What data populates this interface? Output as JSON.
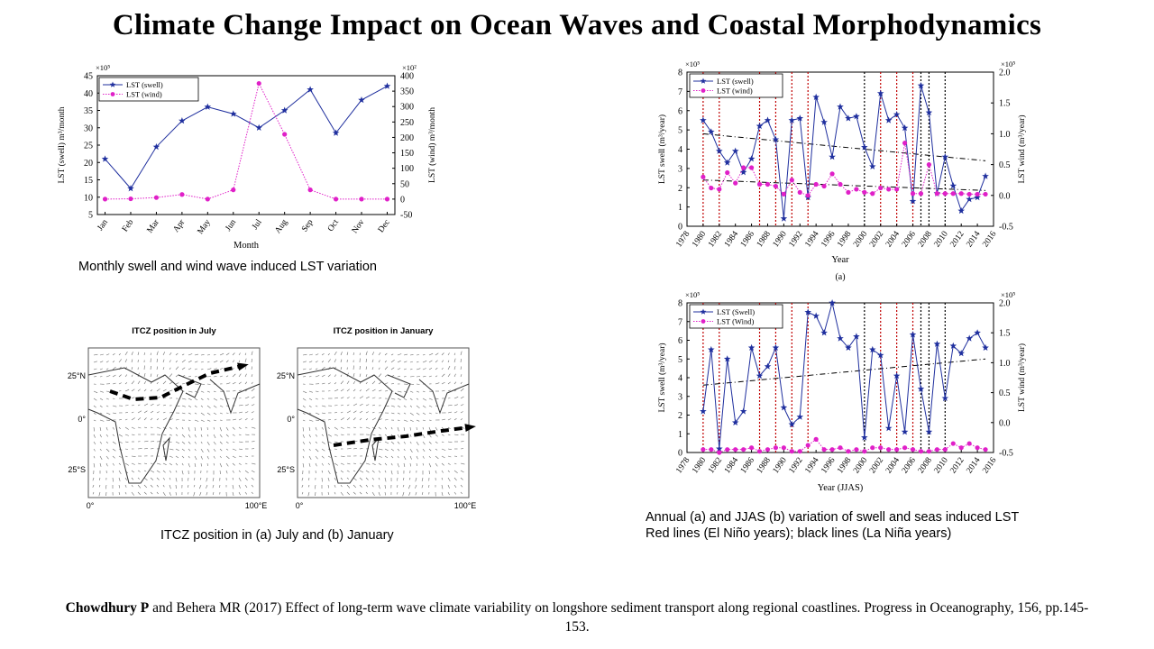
{
  "slide": {
    "title": "Climate Change Impact on Ocean Waves and Coastal Morphodynamics",
    "caption_monthly": "Monthly swell and wind wave induced LST variation",
    "caption_itcz": "ITCZ position in (a) July and (b) January",
    "caption_annual_line1": "Annual (a) and JJAS (b) variation of swell and seas induced LST",
    "caption_annual_line2": "Red lines (El Niño years); black lines (La Niña years)",
    "citation_author": "Chowdhury P",
    "citation_rest": " and Behera MR (2017) Effect of long-term wave climate variability on longshore sediment transport along regional coastlines. Progress in Oceanography, 156, pp.145-153."
  },
  "maps": {
    "july_title": "ITCZ position in July",
    "january_title": "ITCZ position in January",
    "lat_labels": [
      "25°N",
      "0°",
      "25°S"
    ],
    "lon_labels": [
      "0°",
      "100°E"
    ]
  },
  "chart_data": [
    {
      "type": "line",
      "xlabel": "Month",
      "ylabel": "LST (swell) m³/month",
      "y2label": "LST (wind) m³/month",
      "yscale_note": "×10⁵",
      "y2scale_note": "×10²",
      "ylim": [
        5,
        45
      ],
      "y2lim": [
        -50,
        400
      ],
      "categories": [
        "Jan",
        "Feb",
        "Mar",
        "Apr",
        "May",
        "Jun",
        "Jul",
        "Aug",
        "Sep",
        "Oct",
        "Nov",
        "Dec"
      ],
      "legend_position": "top-left",
      "series": [
        {
          "name": "LST (swell)",
          "axis": "left",
          "color": "#1f2f9e",
          "style": "solid-star",
          "values": [
            21,
            12.5,
            24.5,
            32,
            36,
            34,
            30,
            35,
            41,
            28.5,
            38,
            42
          ]
        },
        {
          "name": "LST (wind)",
          "axis": "right",
          "color": "#e020c8",
          "style": "dotted-dot",
          "values": [
            0,
            1,
            5,
            15,
            0,
            30,
            375,
            210,
            30,
            0,
            0,
            0
          ]
        }
      ]
    },
    {
      "type": "line",
      "panel_label": "(a)",
      "xlabel": "Year",
      "ylabel": "LST swell (m³/year)",
      "y2label": "LST wind (m³/year)",
      "yscale_note": "×10⁵",
      "y2scale_note": "×10⁵",
      "ylim": [
        0,
        8
      ],
      "y2lim": [
        -0.5,
        2
      ],
      "xlim": [
        1978,
        2016
      ],
      "x_ticks": [
        1978,
        1980,
        1982,
        1984,
        1986,
        1988,
        1990,
        1992,
        1994,
        1996,
        1998,
        2000,
        2002,
        2004,
        2006,
        2008,
        2010,
        2012,
        2014,
        2016
      ],
      "legend_position": "top-left",
      "el_nino_years": [
        1980,
        1982,
        1987,
        1989,
        1991,
        1993,
        2002,
        2004,
        2006
      ],
      "la_nina_years": [
        2000,
        2007,
        2008,
        2010
      ],
      "x": [
        1980,
        1981,
        1982,
        1983,
        1984,
        1985,
        1986,
        1987,
        1988,
        1989,
        1990,
        1991,
        1992,
        1993,
        1994,
        1995,
        1996,
        1997,
        1998,
        1999,
        2000,
        2001,
        2002,
        2003,
        2004,
        2005,
        2006,
        2007,
        2008,
        2009,
        2010,
        2011,
        2012,
        2013,
        2014,
        2015
      ],
      "series": [
        {
          "name": "LST (swell)",
          "axis": "left",
          "color": "#1f2f9e",
          "style": "solid-star",
          "values": [
            5.5,
            4.9,
            3.9,
            3.3,
            3.9,
            2.8,
            3.5,
            5.2,
            5.5,
            4.5,
            0.4,
            5.5,
            5.6,
            1.5,
            6.7,
            5.4,
            3.6,
            6.2,
            5.6,
            5.7,
            4.1,
            3.1,
            6.9,
            5.5,
            5.8,
            5.1,
            1.3,
            7.3,
            5.9,
            1.7,
            3.6,
            2.1,
            0.8,
            1.4,
            1.5,
            2.6
          ]
        },
        {
          "name": "LST (wind)",
          "axis": "right",
          "color": "#e020c8",
          "style": "dotted-dot",
          "values": [
            0.3,
            0.12,
            0.1,
            0.37,
            0.2,
            0.45,
            0.45,
            0.18,
            0.18,
            0.15,
            0.02,
            0.25,
            0.05,
            0.0,
            0.18,
            0.15,
            0.35,
            0.18,
            0.05,
            0.1,
            0.05,
            0.03,
            0.12,
            0.1,
            0.1,
            0.85,
            0.03,
            0.03,
            0.5,
            0.03,
            0.03,
            0.03,
            0.03,
            0.02,
            0.02,
            0.02
          ]
        }
      ],
      "trend_lines": [
        {
          "axis": "left",
          "from": [
            1980,
            4.8
          ],
          "to": [
            2015,
            3.4
          ]
        },
        {
          "axis": "right",
          "from": [
            1980,
            0.25
          ],
          "to": [
            2015,
            0.08
          ]
        }
      ]
    },
    {
      "type": "line",
      "xlabel": "Year (JJAS)",
      "ylabel": "LST swell (m³/year)",
      "y2label": "LST wind (m³/year)",
      "yscale_note": "×10⁵",
      "y2scale_note": "×10⁵",
      "ylim": [
        0,
        8
      ],
      "y2lim": [
        -0.5,
        2
      ],
      "xlim": [
        1978,
        2016
      ],
      "x_ticks": [
        1978,
        1980,
        1982,
        1984,
        1986,
        1988,
        1990,
        1992,
        1994,
        1996,
        1998,
        2000,
        2002,
        2004,
        2006,
        2008,
        2010,
        2012,
        2014,
        2016
      ],
      "legend_position": "top-left",
      "el_nino_years": [
        1980,
        1982,
        1987,
        1989,
        1991,
        1993,
        2002,
        2004,
        2006
      ],
      "la_nina_years": [
        2000,
        2007,
        2008,
        2010
      ],
      "x": [
        1980,
        1981,
        1982,
        1983,
        1984,
        1985,
        1986,
        1987,
        1988,
        1989,
        1990,
        1991,
        1992,
        1993,
        1994,
        1995,
        1996,
        1997,
        1998,
        1999,
        2000,
        2001,
        2002,
        2003,
        2004,
        2005,
        2006,
        2007,
        2008,
        2009,
        2010,
        2011,
        2012,
        2013,
        2014,
        2015
      ],
      "series": [
        {
          "name": "LST (Swell)",
          "axis": "left",
          "color": "#1f2f9e",
          "style": "solid-star",
          "values": [
            2.2,
            5.5,
            0.2,
            5.0,
            1.6,
            2.2,
            5.6,
            4.1,
            4.6,
            5.6,
            2.4,
            1.5,
            1.9,
            7.5,
            7.3,
            6.4,
            8.0,
            6.1,
            5.6,
            6.2,
            0.8,
            5.5,
            5.2,
            1.3,
            4.1,
            1.1,
            6.3,
            3.4,
            1.1,
            5.8,
            2.9,
            5.7,
            5.3,
            6.1,
            6.4,
            5.6
          ]
        },
        {
          "name": "LST (Wind)",
          "axis": "right",
          "color": "#e020c8",
          "style": "dotted-dot",
          "values": [
            -0.45,
            -0.45,
            -0.5,
            -0.45,
            -0.45,
            -0.45,
            -0.42,
            -0.48,
            -0.45,
            -0.42,
            -0.42,
            -0.48,
            -0.48,
            -0.38,
            -0.28,
            -0.45,
            -0.45,
            -0.42,
            -0.48,
            -0.45,
            -0.48,
            -0.42,
            -0.42,
            -0.45,
            -0.45,
            -0.42,
            -0.45,
            -0.48,
            -0.48,
            -0.45,
            -0.45,
            -0.35,
            -0.42,
            -0.35,
            -0.42,
            -0.45
          ]
        }
      ],
      "trend_lines": [
        {
          "axis": "left",
          "from": [
            1980,
            3.6
          ],
          "to": [
            2015,
            5.0
          ]
        }
      ]
    }
  ]
}
